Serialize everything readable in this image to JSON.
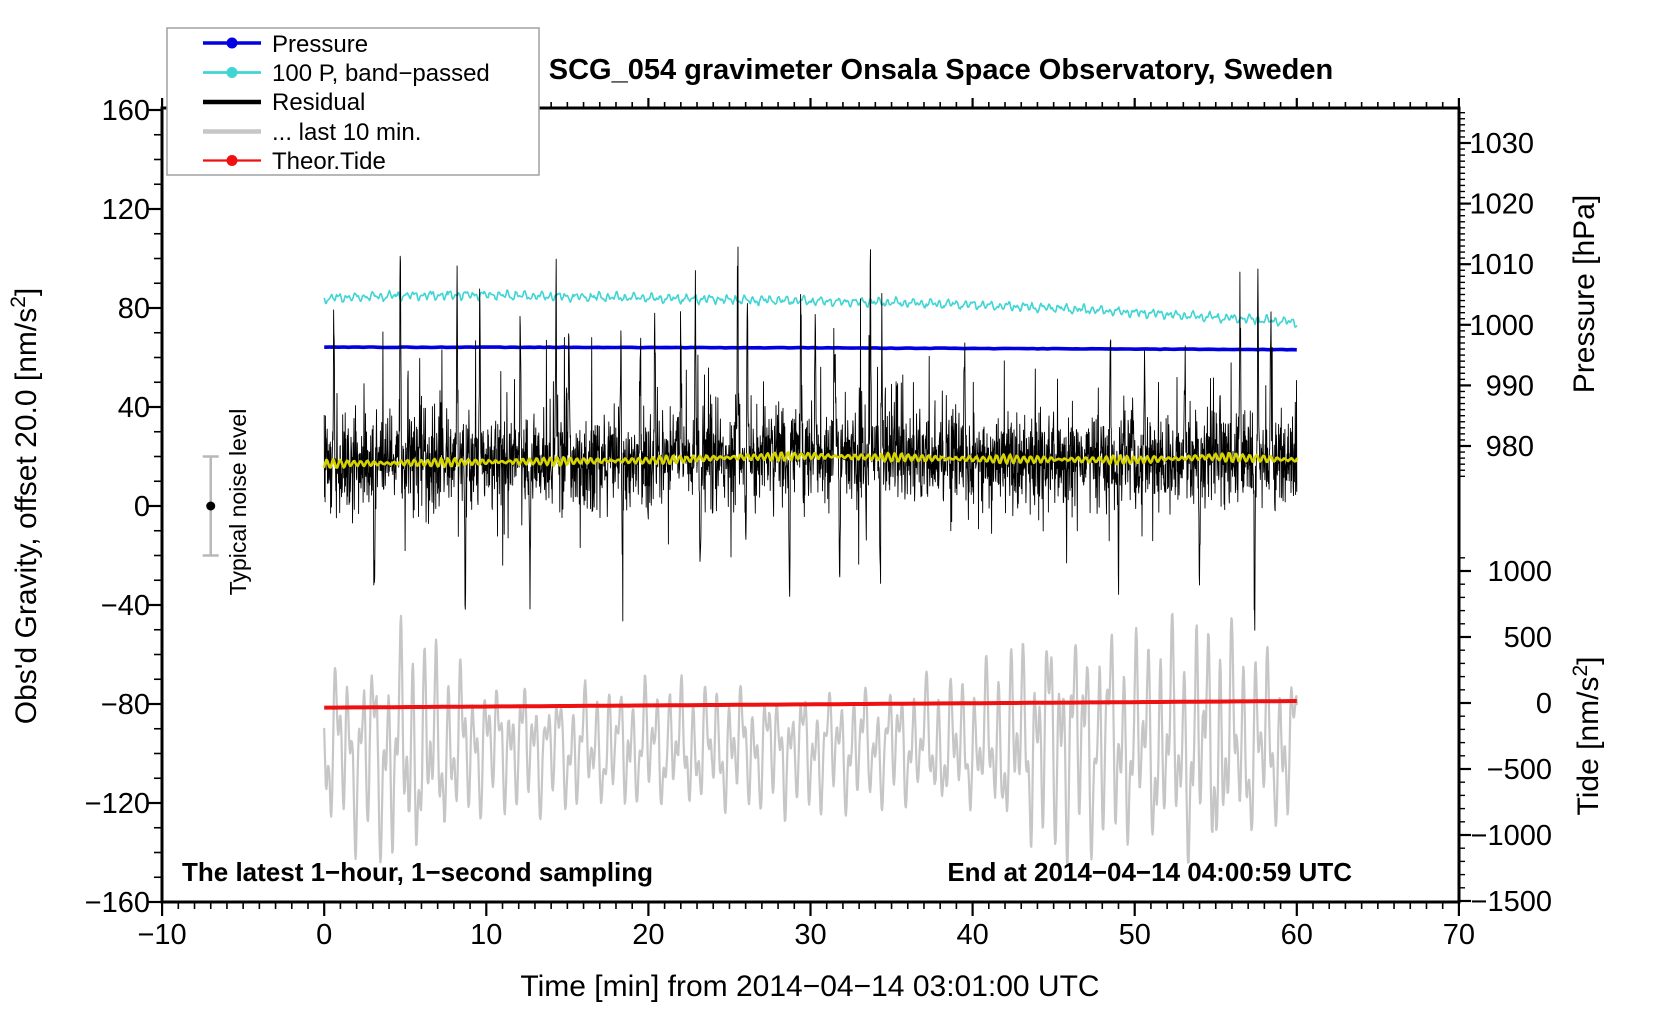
{
  "chart_data": {
    "type": "line",
    "title": "SCG_054 gravimeter Onsala Space Observatory, Sweden",
    "xlabel": "Time [min] from 2014−04−14 03:01:00 UTC",
    "annotations": {
      "bottom_left": "The latest 1−hour, 1−second sampling",
      "bottom_right": "End at 2014−04−14 04:00:59 UTC",
      "noise_marker": "Typical noise level"
    },
    "axes": {
      "x": {
        "min": -10,
        "max": 70,
        "major_ticks": [
          -10,
          0,
          10,
          20,
          30,
          40,
          50,
          60,
          70
        ],
        "minor_step": 1
      },
      "gravity": {
        "title": {
          "pre": "Obs'd Gravity, offset 20.0 [nm/s",
          "sup": "2",
          "post": "]"
        },
        "min": -160,
        "max": 160,
        "major_ticks": [
          160,
          120,
          80,
          40,
          0,
          -40,
          -80,
          -120,
          -160
        ],
        "minor_step": 10
      },
      "pressure": {
        "title": "Pressure [hPa]",
        "major_ticks": [
          1030,
          1020,
          1010,
          1000,
          990,
          980
        ],
        "minor_step": 1,
        "minor_min": 975,
        "minor_max": 1035
      },
      "tide": {
        "title": {
          "pre": "Tide [nm/s",
          "sup": "2",
          "post": "]"
        },
        "major_ticks": [
          1000,
          500,
          0,
          -500,
          -1000,
          -1500
        ],
        "minor_step": 100,
        "minor_min": -1500,
        "minor_max": 1100
      }
    },
    "legend": {
      "items": [
        {
          "label": "Pressure",
          "color": "#0000e0",
          "line_width": 3.5,
          "marker": true
        },
        {
          "label": "100 P, band−passed",
          "color": "#40d4d4",
          "line_width": 2.8,
          "marker": true
        },
        {
          "label": "Residual",
          "color": "#000000",
          "line_width": 4.5,
          "marker": false
        },
        {
          "label": "... last 10 min.",
          "color": "#c6c6c6",
          "line_width": 4.5,
          "marker": false
        },
        {
          "label": "Theor.Tide",
          "color": "#ee1111",
          "line_width": 2.2,
          "marker": true
        }
      ]
    },
    "noise_level": {
      "x_minute": -7,
      "value": 0,
      "error": 20
    },
    "series": {
      "pressure": {
        "unit": "hPa",
        "color": "#0000e0",
        "width": 3.6,
        "x_minutes": [
          0,
          10,
          20,
          30,
          40,
          50,
          60
        ],
        "values_hPa": [
          996.3,
          996.3,
          996.25,
          996.2,
          996.1,
          996.0,
          995.9
        ]
      },
      "band_passed": {
        "unit": "gravity_nm_s2",
        "color": "#40d4d4",
        "width": 1.6,
        "x_minutes": [
          0,
          5,
          10,
          15,
          20,
          25,
          30,
          35,
          40,
          45,
          50,
          55,
          60
        ],
        "baseline": [
          84.0,
          85.0,
          85.3,
          84.6,
          84.0,
          83.4,
          82.8,
          82.2,
          81.3,
          80.0,
          78.2,
          76.2,
          74.3
        ],
        "ripple_amp": 1.9
      },
      "residual": {
        "unit": "gravity_nm_s2",
        "color": "#000000",
        "width": 0.9,
        "x_minutes": [
          0,
          5,
          10,
          15,
          20,
          25,
          30,
          35,
          40,
          45,
          50,
          55,
          60
        ],
        "mean": [
          16,
          17,
          18,
          18,
          19,
          20,
          21,
          20,
          19,
          19,
          18.5,
          19,
          18
        ],
        "sigma": 9,
        "spikes_up": [
          [
            0.6,
            83
          ],
          [
            4.7,
            99
          ],
          [
            5.9,
            93
          ],
          [
            8.2,
            95
          ],
          [
            9.6,
            84
          ],
          [
            12.1,
            80
          ],
          [
            14.3,
            86
          ],
          [
            15.1,
            79
          ],
          [
            18.3,
            74
          ],
          [
            19.5,
            83
          ],
          [
            20.4,
            87
          ],
          [
            22.0,
            79
          ],
          [
            22.9,
            95
          ],
          [
            25.5,
            109
          ],
          [
            26.1,
            83
          ],
          [
            29.4,
            79
          ],
          [
            30.3,
            87
          ],
          [
            31.5,
            81
          ],
          [
            33.7,
            99
          ],
          [
            34.4,
            83
          ],
          [
            37.7,
            95
          ],
          [
            39.5,
            83
          ],
          [
            41.7,
            72
          ],
          [
            45.4,
            76
          ],
          [
            48.5,
            80
          ],
          [
            50.6,
            71
          ],
          [
            53.1,
            77
          ],
          [
            56.5,
            83
          ],
          [
            57.6,
            105
          ],
          [
            58.4,
            87
          ]
        ],
        "spikes_down": [
          [
            3.1,
            -30
          ],
          [
            5.9,
            -34
          ],
          [
            8.7,
            -46
          ],
          [
            12.7,
            -38
          ],
          [
            18.4,
            -38
          ],
          [
            23.2,
            -42
          ],
          [
            26.0,
            -34
          ],
          [
            28.7,
            -46
          ],
          [
            31.8,
            -38
          ],
          [
            34.3,
            -42
          ],
          [
            37.7,
            -46
          ],
          [
            41.7,
            -38
          ],
          [
            45.4,
            -42
          ],
          [
            49.0,
            -34
          ],
          [
            54.0,
            -32
          ],
          [
            57.4,
            -50
          ]
        ]
      },
      "smoothed": {
        "unit": "gravity_nm_s2",
        "color": "#d6d400",
        "width": 2.6,
        "x_minutes": [
          0,
          5,
          10,
          15,
          20,
          25,
          30,
          35,
          40,
          45,
          50,
          55,
          60
        ],
        "base": [
          17.0,
          17.4,
          17.8,
          18.1,
          18.4,
          19.6,
          20.2,
          19.6,
          19.0,
          18.8,
          18.6,
          19.8,
          18.6
        ],
        "ripple_amp": 1.1,
        "ripple_period_min": 0.42
      },
      "theor_tide": {
        "unit": "tide_nm_s2",
        "color": "#ee1111",
        "width": 4,
        "x_minutes": [
          0,
          60
        ],
        "values": [
          -35,
          15
        ]
      },
      "last10": {
        "unit": "tide_nm_s2",
        "color": "#c6c6c6",
        "width": 2.2,
        "x_minutes": [
          0,
          5,
          10,
          15,
          20,
          25,
          30,
          35,
          40,
          45,
          50,
          55,
          60
        ],
        "mean": [
          -340,
          -370,
          -310,
          -340,
          -320,
          -340,
          -350,
          -310,
          -330,
          -260,
          -300,
          -320,
          -340
        ],
        "amp": [
          500,
          800,
          430,
          400,
          430,
          400,
          420,
          400,
          450,
          780,
          700,
          800,
          500
        ],
        "period_min": 0.75
      }
    }
  }
}
